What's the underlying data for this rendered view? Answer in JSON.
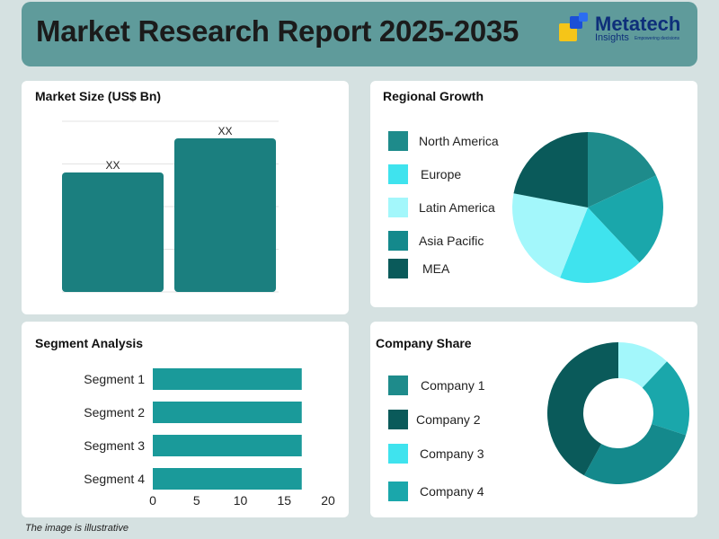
{
  "header": {
    "title": "Market Research Report 2025-2035",
    "logo_brand": "Metatech",
    "logo_sub": "Insights",
    "logo_tagline": "Empowering decisions"
  },
  "colors": {
    "header_bg": "#5f9b9b",
    "page_bg": "#d5e1e1",
    "teal": "#1b7f7f",
    "teal_dark": "#0a5a5a",
    "teal_mid": "#1aa7ab",
    "cyan": "#3fe3ee",
    "light_cyan": "#a3f7fb"
  },
  "chart_data": [
    {
      "id": "market",
      "type": "bar",
      "title": "Market Size (US$ Bn)",
      "categories": [
        "",
        ""
      ],
      "values": [
        28,
        36
      ],
      "data_labels": [
        "XX",
        "XX"
      ],
      "ylim": [
        0,
        40
      ],
      "grid": true,
      "color": "#1b7f7f"
    },
    {
      "id": "regional",
      "type": "pie",
      "title": "Regional Growth",
      "labels": [
        "North America",
        "Europe",
        "Latin America",
        "Asia Pacific",
        "MEA"
      ],
      "legend_colors": [
        "#1e8b8b",
        "#3fe3ee",
        "#a3f7fb",
        "#14898c",
        "#0a5a5a"
      ],
      "slices": [
        {
          "value": 18,
          "color": "#1e8b8b"
        },
        {
          "value": 20,
          "color": "#1aa7ab"
        },
        {
          "value": 18,
          "color": "#3fe3ee"
        },
        {
          "value": 22,
          "color": "#a3f7fb"
        },
        {
          "value": 22,
          "color": "#0a5a5a"
        }
      ],
      "legend_position": "left"
    },
    {
      "id": "segment",
      "type": "bar",
      "orientation": "horizontal",
      "title": "Segment Analysis",
      "categories": [
        "Segment 1",
        "Segment 2",
        "Segment 3",
        "Segment 4"
      ],
      "values": [
        17,
        17,
        17,
        17
      ],
      "xlim": [
        0,
        20
      ],
      "xticks": [
        "0",
        "5",
        "10",
        "15",
        "20"
      ],
      "color": "#1a9a9a"
    },
    {
      "id": "company",
      "type": "pie",
      "variant": "donut",
      "title": "Company Share",
      "labels": [
        "Company 1",
        "Company 2",
        "Company 3",
        "Company 4"
      ],
      "legend_colors": [
        "#1e8b8b",
        "#0a5a5a",
        "#3fe3ee",
        "#1aa7ab"
      ],
      "slices": [
        {
          "value": 12,
          "color": "#a3f7fb"
        },
        {
          "value": 18,
          "color": "#1aa7ab"
        },
        {
          "value": 28,
          "color": "#14898c"
        },
        {
          "value": 42,
          "color": "#0a5a5a"
        }
      ],
      "legend_position": "left"
    }
  ],
  "footnote": "The image is illustrative"
}
